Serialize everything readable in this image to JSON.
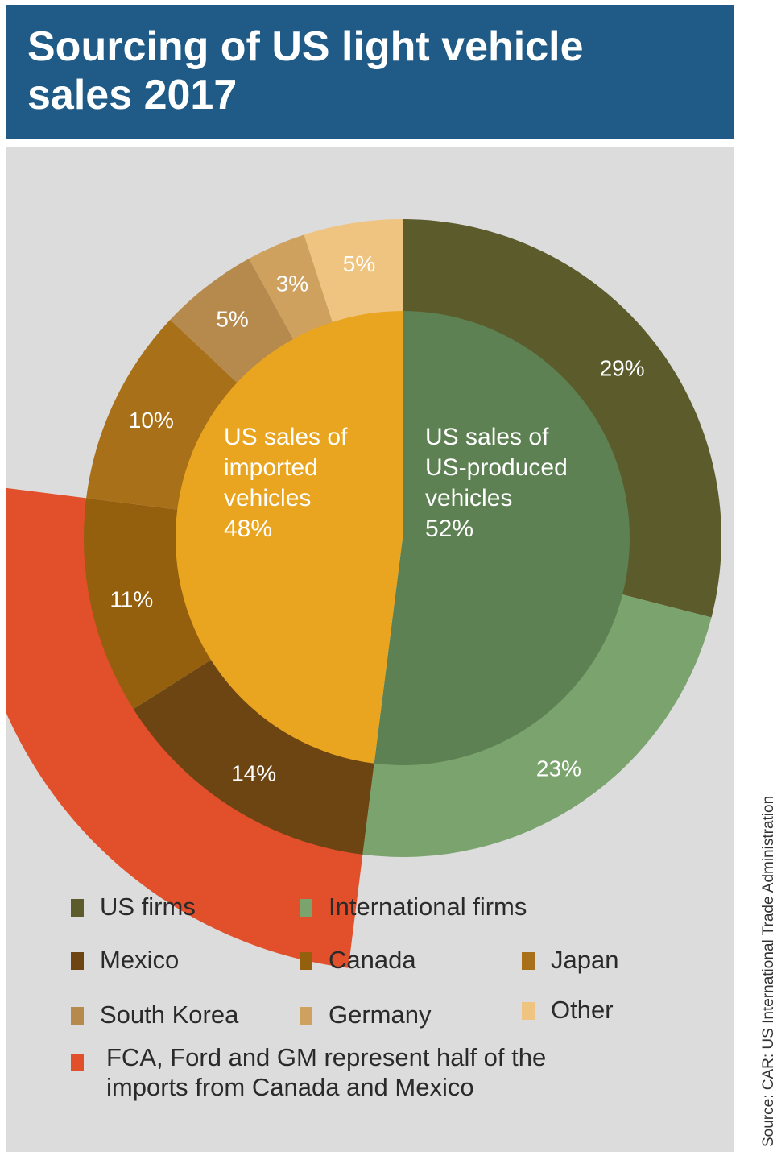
{
  "title_lines": [
    "Sourcing of US light vehicle",
    "sales 2017"
  ],
  "source": "Source: CAR; US International Trade Administration",
  "colors": {
    "us_firms": "#5b5b2c",
    "international_firms": "#7ba36d",
    "us_produced_inner": "#5d8152",
    "imported_inner": "#e9a51f",
    "mexico": "#6c4513",
    "canada": "#94600e",
    "japan": "#a9701a",
    "south_korea": "#b58a4c",
    "germany": "#cfa15e",
    "other": "#efc481",
    "fca_ford_gm": "#e24f2b"
  },
  "chart_data": {
    "type": "pie",
    "title": "Sourcing of US light vehicle sales 2017",
    "inner": [
      {
        "key": "us_produced",
        "lines": [
          "US sales of",
          "US-produced",
          "vehicles",
          "52%"
        ],
        "value": 52,
        "color": "#5d8152"
      },
      {
        "key": "imported",
        "lines": [
          "US sales of",
          "imported",
          "vehicles",
          "48%"
        ],
        "value": 48,
        "color": "#e9a51f"
      }
    ],
    "outer": [
      {
        "key": "us_firms",
        "label": "US firms",
        "value": 29,
        "value_label": "29%",
        "color": "#5b5b2c"
      },
      {
        "key": "international_firms",
        "label": "International firms",
        "value": 23,
        "value_label": "23%",
        "color": "#7ba36d"
      },
      {
        "key": "mexico",
        "label": "Mexico",
        "value": 14,
        "value_label": "14%",
        "color": "#6c4513"
      },
      {
        "key": "canada",
        "label": "Canada",
        "value": 11,
        "value_label": "11%",
        "color": "#94600e"
      },
      {
        "key": "japan",
        "label": "Japan",
        "value": 10,
        "value_label": "10%",
        "color": "#a9701a"
      },
      {
        "key": "south_korea",
        "label": "South Korea",
        "value": 5,
        "value_label": "5%",
        "color": "#b58a4c"
      },
      {
        "key": "germany",
        "label": "Germany",
        "value": 3,
        "value_label": "3%",
        "color": "#cfa15e"
      },
      {
        "key": "other",
        "label": "Other",
        "value": 5,
        "value_label": "5%",
        "color": "#efc481"
      }
    ],
    "highlight": {
      "label": "FCA, Ford and GM represent half of the imports from Canada and Mexico",
      "covers": [
        "mexico",
        "canada"
      ],
      "color": "#e24f2b"
    }
  },
  "legend": {
    "row1": [
      {
        "label": "US firms",
        "color": "#5b5b2c"
      },
      {
        "label": "International firms",
        "color": "#7ba36d"
      }
    ],
    "row2": [
      {
        "label": "Mexico",
        "color": "#6c4513"
      },
      {
        "label": "Canada",
        "color": "#94600e"
      },
      {
        "label": "Japan",
        "color": "#a9701a"
      }
    ],
    "row3": [
      {
        "label": "South Korea",
        "color": "#b58a4c"
      },
      {
        "label": "Germany",
        "color": "#cfa15e"
      },
      {
        "label": "Other",
        "color": "#efc481"
      }
    ],
    "note_lines": [
      "FCA, Ford and GM represent half of the",
      "imports from Canada and Mexico"
    ],
    "note_color": "#e24f2b"
  }
}
